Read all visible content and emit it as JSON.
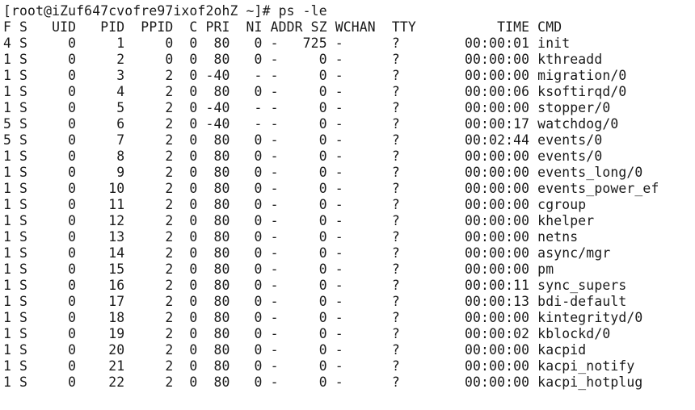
{
  "terminal": {
    "prompt_line": "[root@iZuf647cvofre97ixof2ohZ ~]# ps -le",
    "header_line": "F S   UID   PID  PPID  C PRI  NI ADDR SZ WCHAN  TTY          TIME CMD",
    "rows": [
      "4 S     0     1     0  0  80   0 -   725 -      ?        00:00:01 init",
      "1 S     0     2     0  0  80   0 -     0 -      ?        00:00:00 kthreadd",
      "1 S     0     3     2  0 -40   - -     0 -      ?        00:00:00 migration/0",
      "1 S     0     4     2  0  80   0 -     0 -      ?        00:00:06 ksoftirqd/0",
      "1 S     0     5     2  0 -40   - -     0 -      ?        00:00:00 stopper/0",
      "5 S     0     6     2  0 -40   - -     0 -      ?        00:00:17 watchdog/0",
      "5 S     0     7     2  0  80   0 -     0 -      ?        00:02:44 events/0",
      "1 S     0     8     2  0  80   0 -     0 -      ?        00:00:00 events/0",
      "1 S     0     9     2  0  80   0 -     0 -      ?        00:00:00 events_long/0",
      "1 S     0    10     2  0  80   0 -     0 -      ?        00:00:00 events_power_ef",
      "1 S     0    11     2  0  80   0 -     0 -      ?        00:00:00 cgroup",
      "1 S     0    12     2  0  80   0 -     0 -      ?        00:00:00 khelper",
      "1 S     0    13     2  0  80   0 -     0 -      ?        00:00:00 netns",
      "1 S     0    14     2  0  80   0 -     0 -      ?        00:00:00 async/mgr",
      "1 S     0    15     2  0  80   0 -     0 -      ?        00:00:00 pm",
      "1 S     0    16     2  0  80   0 -     0 -      ?        00:00:11 sync_supers",
      "1 S     0    17     2  0  80   0 -     0 -      ?        00:00:13 bdi-default",
      "1 S     0    18     2  0  80   0 -     0 -      ?        00:00:00 kintegrityd/0",
      "1 S     0    19     2  0  80   0 -     0 -      ?        00:00:02 kblockd/0",
      "1 S     0    20     2  0  80   0 -     0 -      ?        00:00:00 kacpid",
      "1 S     0    21     2  0  80   0 -     0 -      ?        00:00:00 kacpi_notify",
      "1 S     0    22     2  0  80   0 -     0 -      ?        00:00:00 kacpi_hotplug"
    ]
  }
}
